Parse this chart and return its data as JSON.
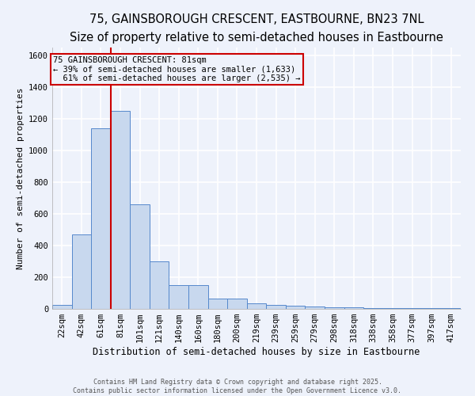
{
  "title": "75, GAINSBOROUGH CRESCENT, EASTBOURNE, BN23 7NL",
  "subtitle": "Size of property relative to semi-detached houses in Eastbourne",
  "xlabel": "Distribution of semi-detached houses by size in Eastbourne",
  "ylabel": "Number of semi-detached properties",
  "bar_heights": [
    25,
    470,
    1140,
    1250,
    660,
    300,
    150,
    150,
    65,
    65,
    35,
    25,
    20,
    15,
    10,
    8,
    5,
    5,
    3,
    3,
    3
  ],
  "bin_labels": [
    "22sqm",
    "42sqm",
    "61sqm",
    "81sqm",
    "101sqm",
    "121sqm",
    "140sqm",
    "160sqm",
    "180sqm",
    "200sqm",
    "219sqm",
    "239sqm",
    "259sqm",
    "279sqm",
    "298sqm",
    "318sqm",
    "338sqm",
    "358sqm",
    "377sqm",
    "397sqm",
    "417sqm"
  ],
  "bar_color": "#c8d8ee",
  "bar_edge_color": "#5588cc",
  "property_index": 3,
  "red_line_color": "#cc0000",
  "annotation_line1": "75 GAINSBOROUGH CRESCENT: 81sqm",
  "annotation_line2": "← 39% of semi-detached houses are smaller (1,633)",
  "annotation_line3": "  61% of semi-detached houses are larger (2,535) →",
  "annotation_box_color": "#cc0000",
  "background_color": "#eef2fb",
  "grid_color": "#ffffff",
  "ylim": [
    0,
    1650
  ],
  "yticks": [
    0,
    200,
    400,
    600,
    800,
    1000,
    1200,
    1400,
    1600
  ],
  "footer_text": "Contains HM Land Registry data © Crown copyright and database right 2025.\nContains public sector information licensed under the Open Government Licence v3.0.",
  "title_fontsize": 10.5,
  "subtitle_fontsize": 9,
  "xlabel_fontsize": 8.5,
  "ylabel_fontsize": 8,
  "annotation_fontsize": 7.5,
  "tick_fontsize": 7.5,
  "footer_fontsize": 6
}
